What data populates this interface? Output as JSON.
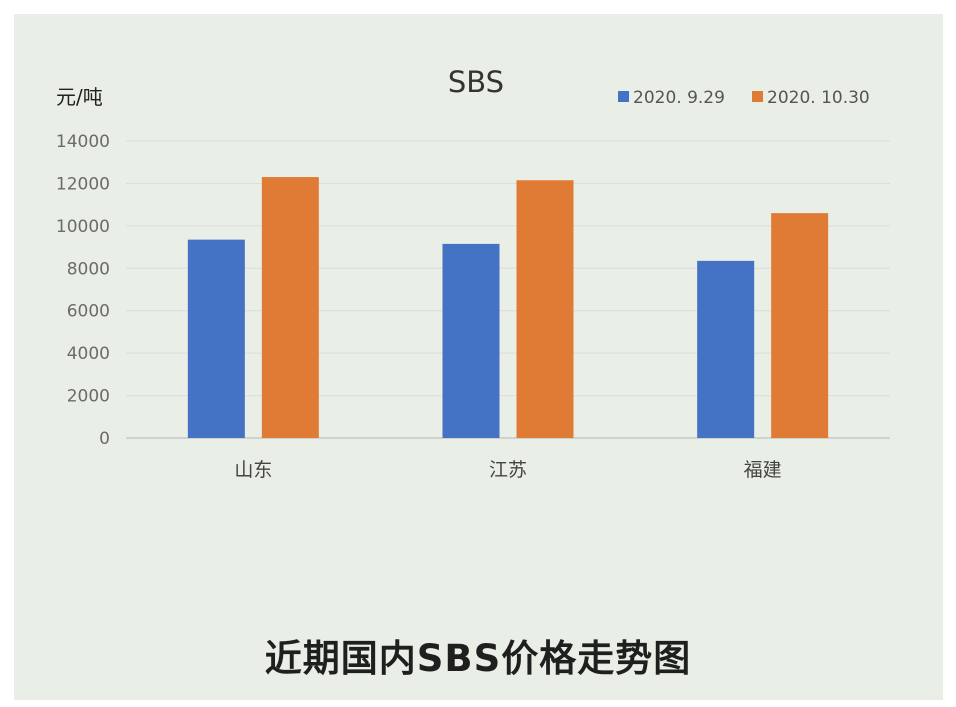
{
  "chart_data": {
    "type": "bar",
    "title": "SBS",
    "ylabel": "元/吨",
    "xlabel": "",
    "ylim": [
      0,
      14000
    ],
    "yticks": [
      0,
      2000,
      4000,
      6000,
      8000,
      10000,
      12000,
      14000
    ],
    "categories": [
      "山东",
      "江苏",
      "福建"
    ],
    "series": [
      {
        "name": "2020. 9.29",
        "color": "#4472c4",
        "values": [
          9350,
          9150,
          8350
        ]
      },
      {
        "name": "2020. 10.30",
        "color": "#e07b35",
        "values": [
          12300,
          12150,
          10600
        ]
      }
    ],
    "legend_position": "top-right",
    "grid": true
  },
  "caption": "近期国内SBS价格走势图"
}
